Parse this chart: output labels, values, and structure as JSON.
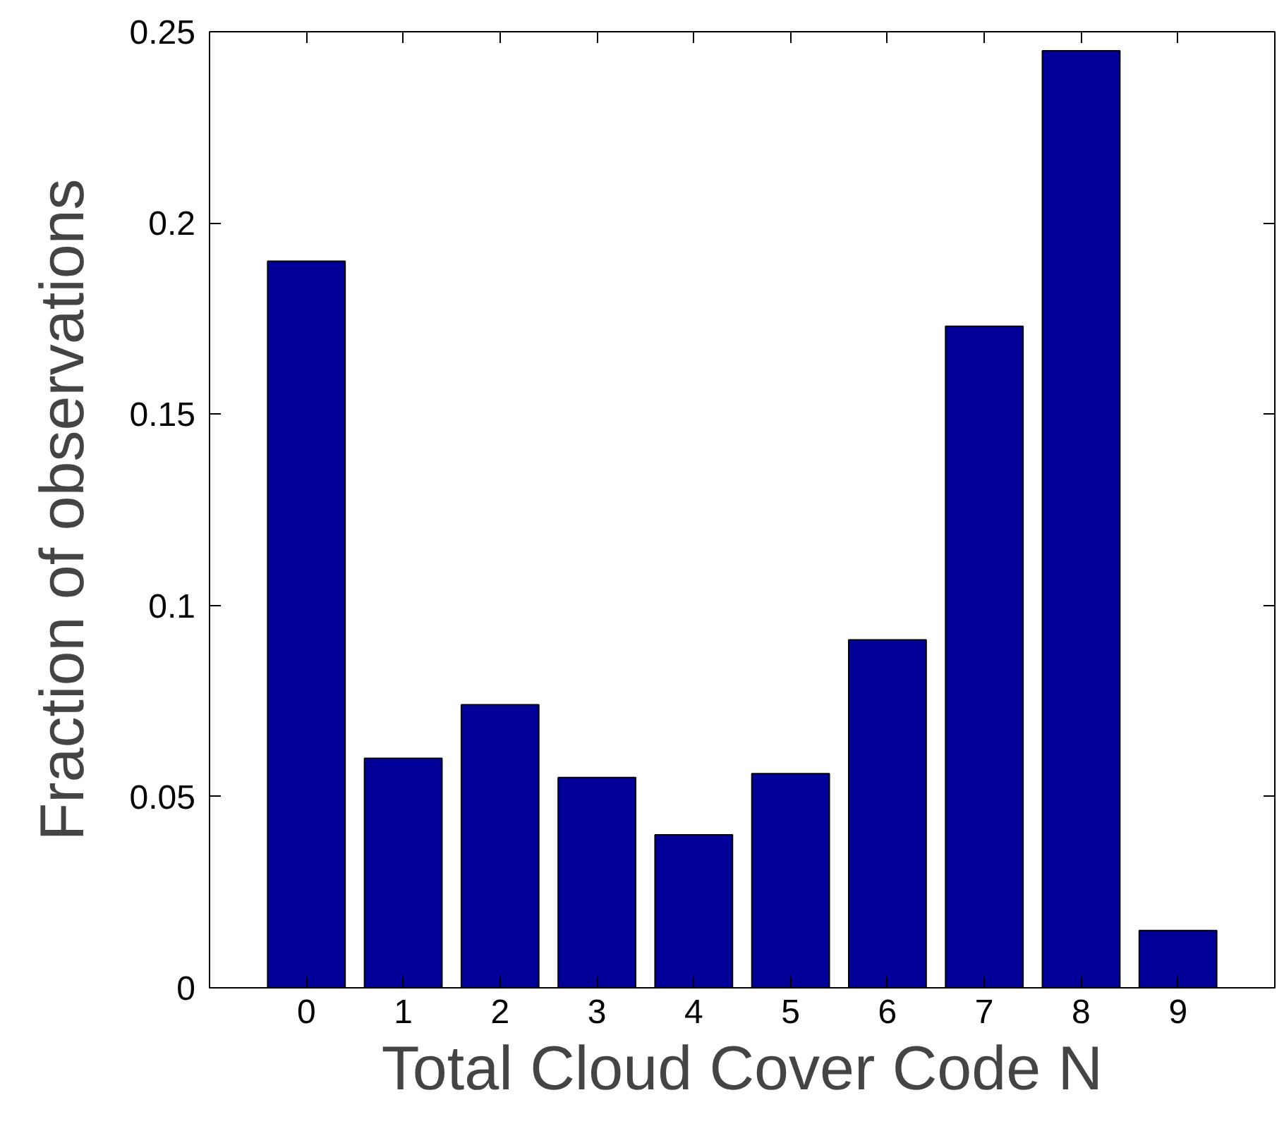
{
  "chart_data": {
    "type": "bar",
    "xlabel": "Total Cloud Cover Code N",
    "ylabel": "Fraction of observations",
    "categories": [
      "0",
      "1",
      "2",
      "3",
      "4",
      "5",
      "6",
      "7",
      "8",
      "9"
    ],
    "values": [
      0.19,
      0.06,
      0.074,
      0.055,
      0.04,
      0.056,
      0.091,
      0.173,
      0.245,
      0.015
    ],
    "color": "#000099",
    "ylim": [
      0,
      0.25
    ],
    "yticks": [
      0,
      0.05,
      0.1,
      0.15,
      0.2,
      0.25
    ],
    "grid": false
  }
}
